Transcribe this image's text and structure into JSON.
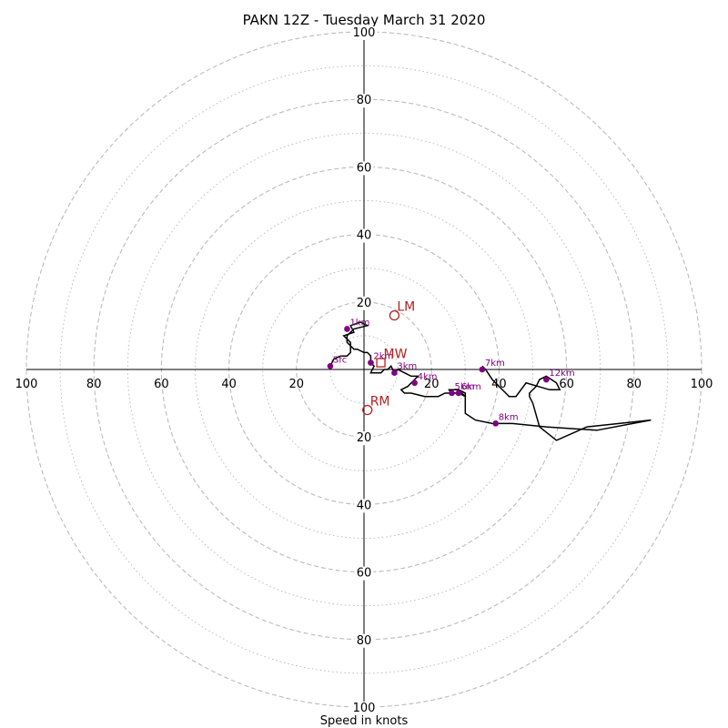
{
  "chart_data": {
    "type": "hodograph",
    "title": "PAKN 12Z - Tuesday March 31 2020",
    "xlabel": "Speed in knots",
    "ring_labels": [
      "20",
      "40",
      "60",
      "80",
      "100"
    ],
    "x_tick_labels": [
      "100",
      "80",
      "60",
      "40",
      "20",
      "20",
      "40",
      "60",
      "80",
      "100"
    ],
    "rings_major": [
      20,
      40,
      60,
      80,
      100
    ],
    "rings_minor": [
      10,
      30,
      50,
      70,
      90
    ],
    "max_speed": 100,
    "grid": true,
    "colors": {
      "trace": "#000000",
      "height_marker": "#800080",
      "motion_marker": "#b22222",
      "ring_grid": "#bbbbbb"
    },
    "trace": [
      [
        -10,
        1
      ],
      [
        -9,
        3
      ],
      [
        -7,
        4
      ],
      [
        -5,
        4
      ],
      [
        -4,
        5
      ],
      [
        -4,
        8
      ],
      [
        -6,
        10
      ],
      [
        -3,
        11
      ],
      [
        -4,
        13
      ],
      [
        -1,
        14
      ],
      [
        1,
        13
      ],
      [
        -3,
        12
      ],
      [
        -4,
        11
      ],
      [
        -5,
        10
      ],
      [
        -5,
        8
      ],
      [
        -4,
        7
      ],
      [
        -3,
        6
      ],
      [
        -2,
        6
      ],
      [
        0,
        5
      ],
      [
        1,
        5
      ],
      [
        2,
        4
      ],
      [
        2,
        3
      ],
      [
        2,
        2
      ],
      [
        3,
        1
      ],
      [
        2,
        -1
      ],
      [
        5,
        -1
      ],
      [
        6,
        0
      ],
      [
        7,
        0
      ],
      [
        8,
        1
      ],
      [
        9,
        -1
      ],
      [
        10,
        0
      ],
      [
        12,
        -1
      ],
      [
        14,
        -2
      ],
      [
        16,
        -2
      ],
      [
        15,
        -3
      ],
      [
        14,
        -4
      ],
      [
        13,
        -5
      ],
      [
        11,
        -6
      ],
      [
        12,
        -7
      ],
      [
        14,
        -7
      ],
      [
        18,
        -8
      ],
      [
        22,
        -8
      ],
      [
        24,
        -7
      ],
      [
        26,
        -7
      ],
      [
        28,
        -7
      ],
      [
        30,
        -8
      ],
      [
        29,
        -7
      ],
      [
        27,
        -7
      ],
      [
        25,
        -6
      ],
      [
        26,
        -6
      ],
      [
        28,
        -6
      ],
      [
        30,
        -7
      ],
      [
        30,
        -13
      ],
      [
        33,
        -15
      ],
      [
        38,
        -16
      ],
      [
        40,
        -16
      ],
      [
        44,
        -16
      ],
      [
        54,
        -17
      ],
      [
        69,
        -18
      ],
      [
        85,
        -15
      ],
      [
        66,
        -17
      ],
      [
        57,
        -21
      ],
      [
        52,
        -17
      ],
      [
        50,
        -10
      ],
      [
        49,
        -8
      ],
      [
        49,
        -7
      ],
      [
        51,
        -5
      ],
      [
        52,
        -3
      ],
      [
        54,
        -2
      ],
      [
        57,
        -4
      ],
      [
        58,
        -6
      ],
      [
        55,
        -6
      ],
      [
        48,
        -4
      ],
      [
        45,
        -8
      ],
      [
        43,
        -8
      ],
      [
        42,
        -7
      ],
      [
        38,
        -3
      ],
      [
        36,
        0
      ],
      [
        35,
        1
      ]
    ],
    "height_points": [
      {
        "label": "Sfc",
        "u": -10,
        "v": 1
      },
      {
        "label": "1km",
        "u": -5,
        "v": 12
      },
      {
        "label": "2km",
        "u": 2,
        "v": 2
      },
      {
        "label": "3km",
        "u": 9,
        "v": -1
      },
      {
        "label": "4km",
        "u": 15,
        "v": -4
      },
      {
        "label": "5km",
        "u": 26,
        "v": -7
      },
      {
        "label": "6km",
        "u": 28,
        "v": -7
      },
      {
        "label": "7km",
        "u": 35,
        "v": 0
      },
      {
        "label": "8km",
        "u": 39,
        "v": -16
      },
      {
        "label": "12km",
        "u": 54,
        "v": -3
      }
    ],
    "motion_markers": [
      {
        "label": "LM",
        "u": 9,
        "v": 16,
        "shape": "circle"
      },
      {
        "label": "MW",
        "u": 5,
        "v": 2,
        "shape": "square"
      },
      {
        "label": "RM",
        "u": 1,
        "v": -12,
        "shape": "circle"
      }
    ]
  }
}
